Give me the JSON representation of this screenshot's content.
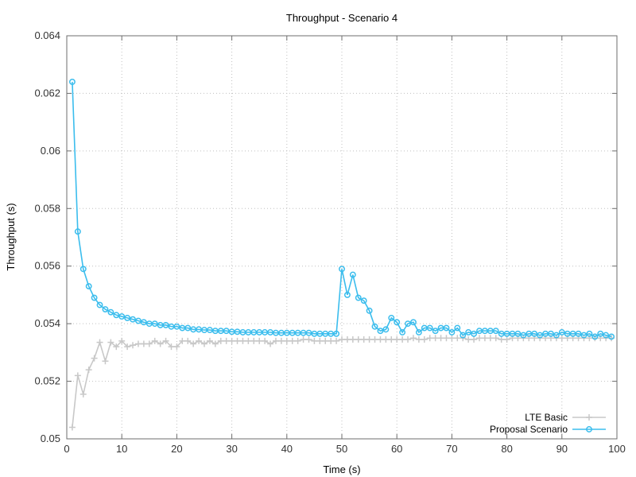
{
  "chart_data": {
    "type": "line",
    "title": "Throughput - Scenario 4",
    "xlabel": "Time (s)",
    "ylabel": "Throughput (s)",
    "xlim": [
      0,
      100
    ],
    "ylim": [
      0.05,
      0.064
    ],
    "x_ticks": [
      "0",
      "10",
      "20",
      "30",
      "40",
      "50",
      "60",
      "70",
      "80",
      "90",
      "100"
    ],
    "y_ticks": [
      "0.05",
      "0.052",
      "0.054",
      "0.056",
      "0.058",
      "0.06",
      "0.062",
      "0.064"
    ],
    "grid": true,
    "legend_position": "bottom-right",
    "x": [
      1,
      2,
      3,
      4,
      5,
      6,
      7,
      8,
      9,
      10,
      11,
      12,
      13,
      14,
      15,
      16,
      17,
      18,
      19,
      20,
      21,
      22,
      23,
      24,
      25,
      26,
      27,
      28,
      29,
      30,
      31,
      32,
      33,
      34,
      35,
      36,
      37,
      38,
      39,
      40,
      41,
      42,
      43,
      44,
      45,
      46,
      47,
      48,
      49,
      50,
      51,
      52,
      53,
      54,
      55,
      56,
      57,
      58,
      59,
      60,
      61,
      62,
      63,
      64,
      65,
      66,
      67,
      68,
      69,
      70,
      71,
      72,
      73,
      74,
      75,
      76,
      77,
      78,
      79,
      80,
      81,
      82,
      83,
      84,
      85,
      86,
      87,
      88,
      89,
      90,
      91,
      92,
      93,
      94,
      95,
      96,
      97,
      98,
      99
    ],
    "series": [
      {
        "name": "LTE Basic",
        "color": "#c8c8c8",
        "marker": "plus",
        "values": [
          0.0504,
          0.0522,
          0.05155,
          0.0524,
          0.0528,
          0.05335,
          0.0527,
          0.05335,
          0.0532,
          0.0534,
          0.0532,
          0.05325,
          0.0533,
          0.0533,
          0.0533,
          0.0534,
          0.0533,
          0.0534,
          0.0532,
          0.0532,
          0.0534,
          0.0534,
          0.0533,
          0.0534,
          0.0533,
          0.0534,
          0.0533,
          0.0534,
          0.0534,
          0.0534,
          0.0534,
          0.0534,
          0.0534,
          0.0534,
          0.0534,
          0.0534,
          0.0533,
          0.0534,
          0.0534,
          0.0534,
          0.0534,
          0.0534,
          0.05345,
          0.05345,
          0.0534,
          0.0534,
          0.0534,
          0.0534,
          0.0534,
          0.05345,
          0.05345,
          0.05345,
          0.05345,
          0.05345,
          0.05345,
          0.05345,
          0.05345,
          0.05345,
          0.05345,
          0.05345,
          0.05345,
          0.05345,
          0.0535,
          0.05345,
          0.05345,
          0.0535,
          0.0535,
          0.0535,
          0.0535,
          0.0535,
          0.0535,
          0.0535,
          0.05345,
          0.05345,
          0.0535,
          0.0535,
          0.0535,
          0.0535,
          0.05345,
          0.05345,
          0.0535,
          0.0535,
          0.0535,
          0.0535,
          0.0535,
          0.0535,
          0.0535,
          0.0535,
          0.0535,
          0.0535,
          0.0535,
          0.0535,
          0.0535,
          0.0535,
          0.0535,
          0.0535,
          0.0535,
          0.0535,
          0.0535
        ]
      },
      {
        "name": "Proposal Scenario",
        "color": "#3bbded",
        "marker": "circle",
        "values": [
          0.0624,
          0.0572,
          0.0559,
          0.0553,
          0.0549,
          0.05465,
          0.0545,
          0.0544,
          0.0543,
          0.05425,
          0.0542,
          0.05415,
          0.0541,
          0.05405,
          0.054,
          0.054,
          0.05395,
          0.05395,
          0.0539,
          0.0539,
          0.05385,
          0.05385,
          0.0538,
          0.0538,
          0.05378,
          0.05378,
          0.05375,
          0.05375,
          0.05375,
          0.05372,
          0.05372,
          0.0537,
          0.0537,
          0.0537,
          0.0537,
          0.0537,
          0.0537,
          0.05368,
          0.05368,
          0.05368,
          0.05368,
          0.05368,
          0.05368,
          0.05368,
          0.05365,
          0.05365,
          0.05365,
          0.05365,
          0.05365,
          0.0559,
          0.055,
          0.0557,
          0.0549,
          0.0548,
          0.05445,
          0.0539,
          0.05375,
          0.0538,
          0.0542,
          0.05405,
          0.0537,
          0.054,
          0.05405,
          0.0537,
          0.05385,
          0.05385,
          0.05375,
          0.05385,
          0.05385,
          0.0537,
          0.05385,
          0.0536,
          0.0537,
          0.05365,
          0.05375,
          0.05375,
          0.05375,
          0.05375,
          0.05365,
          0.05365,
          0.05365,
          0.05365,
          0.0536,
          0.05365,
          0.05365,
          0.0536,
          0.05365,
          0.05365,
          0.0536,
          0.0537,
          0.05365,
          0.05365,
          0.05365,
          0.0536,
          0.05365,
          0.05355,
          0.05365,
          0.0536,
          0.05355
        ]
      }
    ]
  }
}
